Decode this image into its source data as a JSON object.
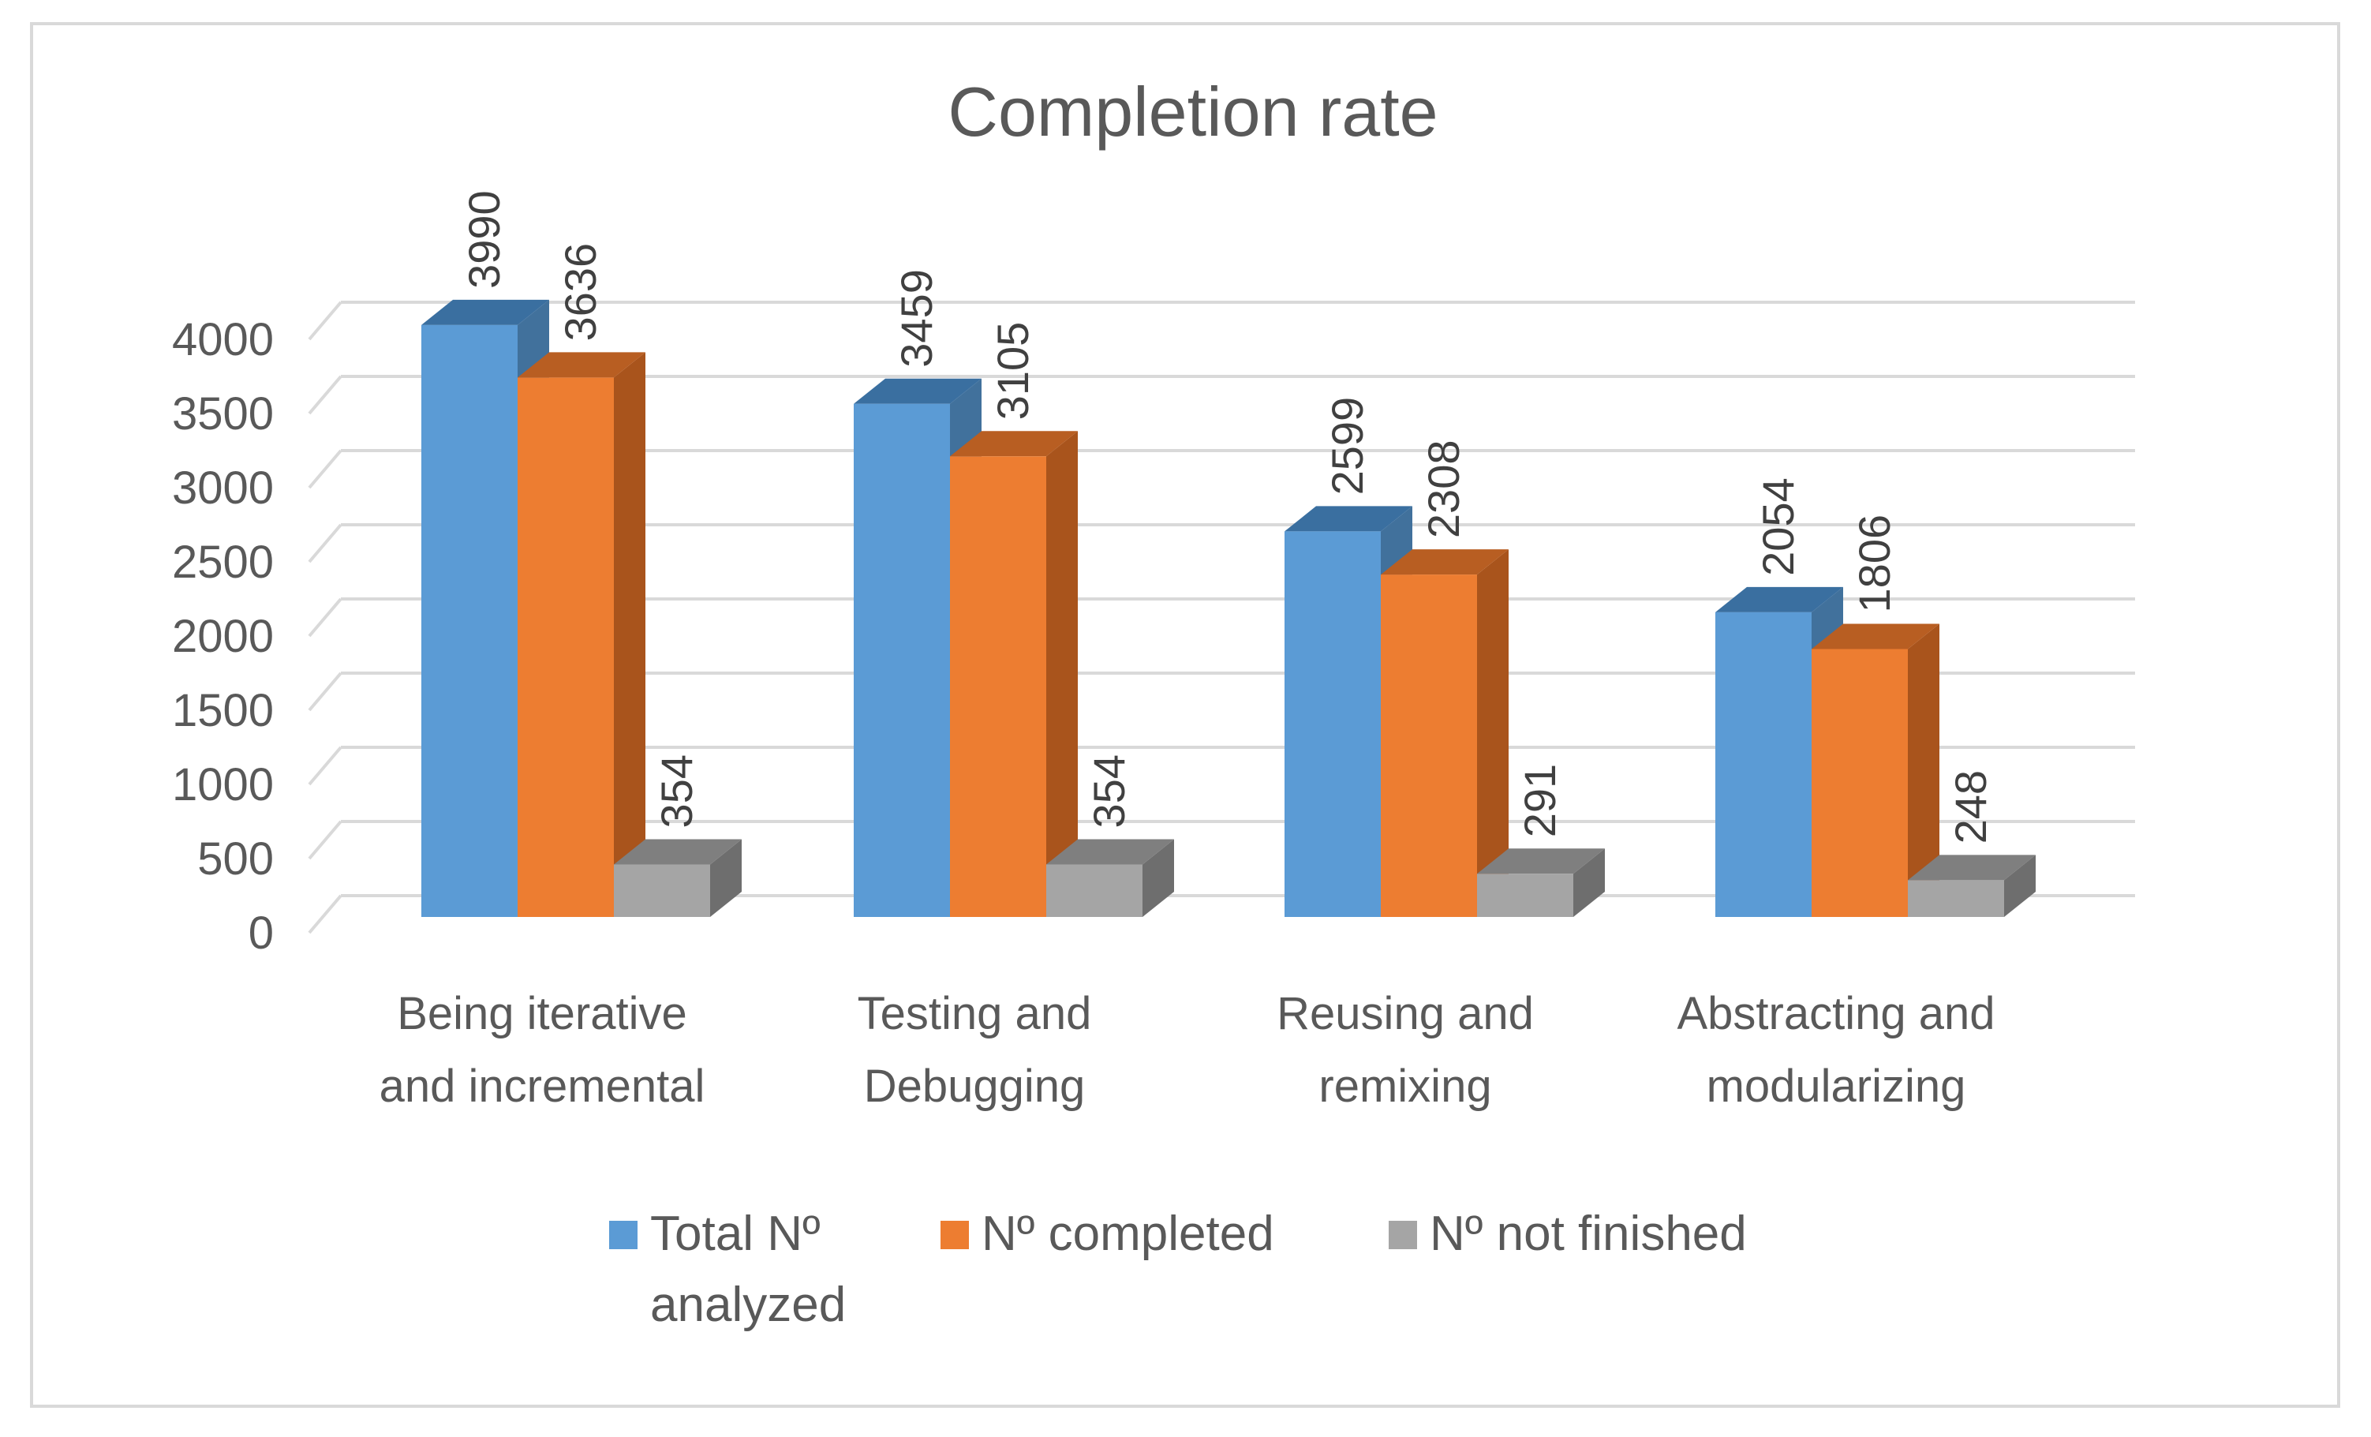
{
  "chart_data": {
    "type": "bar",
    "variant": "3d-clustered-column",
    "title": "Completion rate",
    "categories": [
      [
        "Being iterative",
        "and incremental"
      ],
      [
        "Testing and",
        "Debugging"
      ],
      [
        "Reusing and",
        "remixing"
      ],
      [
        "Abstracting and",
        "modularizing"
      ]
    ],
    "series": [
      {
        "name": [
          "Total Nº",
          "analyzed"
        ],
        "color": "#5b9bd5",
        "side": "#41719c",
        "top": "#3a6fa0",
        "values": [
          3990,
          3459,
          2599,
          2054
        ]
      },
      {
        "name": [
          "Nº completed"
        ],
        "color": "#ed7d31",
        "side": "#a9541c",
        "top": "#b85e22",
        "values": [
          3636,
          3105,
          2308,
          1806
        ]
      },
      {
        "name": [
          "Nº not finished"
        ],
        "color": "#a5a5a5",
        "side": "#6e6e6e",
        "top": "#7f7f7f",
        "values": [
          354,
          354,
          291,
          248
        ]
      }
    ],
    "yticks": [
      0,
      500,
      1000,
      1500,
      2000,
      2500,
      3000,
      3500,
      4000
    ],
    "ylim": [
      0,
      4000
    ],
    "xlabel": "",
    "ylabel": "",
    "grid": true,
    "legend": "bottom"
  }
}
